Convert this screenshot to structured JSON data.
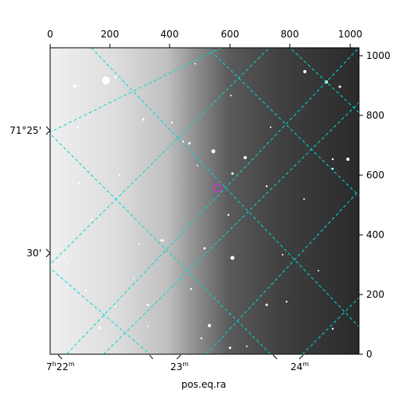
{
  "figure": {
    "x_axis_label": "pos.eq.ra",
    "top_axis_ticks": [
      "0",
      "200",
      "400",
      "600",
      "800",
      "1000"
    ],
    "right_axis_ticks": [
      "0",
      "200",
      "400",
      "600",
      "800",
      "1000"
    ],
    "left_axis_ticks": [
      "71°25'",
      "30'"
    ],
    "bottom_axis_ticks": [
      {
        "main": "7",
        "sup1": "h",
        "mid": "22",
        "sup2": "m"
      },
      {
        "main": "23",
        "sup1": "m",
        "mid": "",
        "sup2": ""
      },
      {
        "main": "24",
        "sup1": "m",
        "mid": "",
        "sup2": ""
      }
    ],
    "grid_color": "#00d8d8",
    "marker_color": "#cc33cc",
    "frame_color": "#000000"
  }
}
